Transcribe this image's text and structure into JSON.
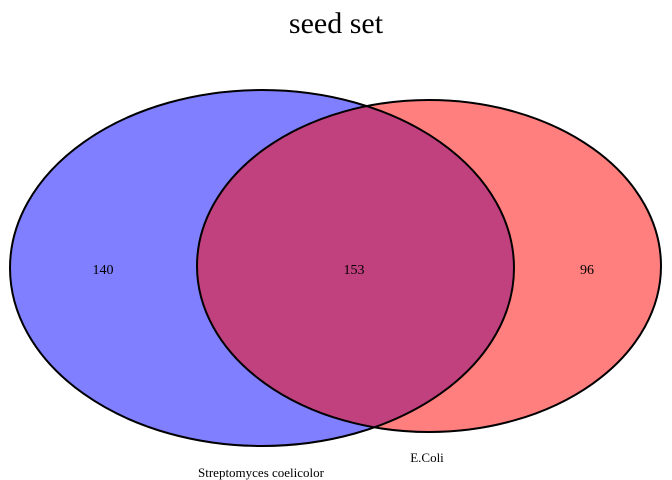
{
  "title": "seed set",
  "sets": [
    {
      "name": "Streptomyces coelicolor",
      "only_count": "140",
      "color": "#7f7fff"
    },
    {
      "name": "E.Coli",
      "only_count": "96",
      "color": "#ff7f7f"
    }
  ],
  "intersection": {
    "count": "153",
    "color": "#c1407e"
  },
  "outline_color": "#000000"
}
